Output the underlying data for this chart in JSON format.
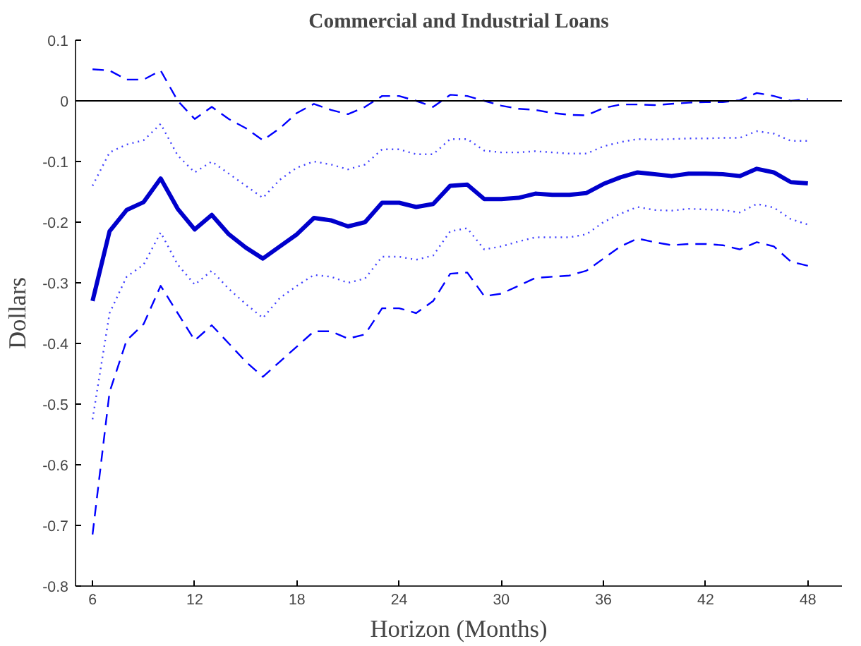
{
  "chart_data": {
    "type": "line",
    "title": "Commercial and Industrial Loans",
    "xlabel": "Horizon (Months)",
    "ylabel": "Dollars",
    "x": [
      6,
      7,
      8,
      9,
      10,
      11,
      12,
      13,
      14,
      15,
      16,
      17,
      18,
      19,
      20,
      21,
      22,
      23,
      24,
      25,
      26,
      27,
      28,
      29,
      30,
      31,
      32,
      33,
      34,
      35,
      36,
      37,
      38,
      39,
      40,
      41,
      42,
      43,
      44,
      45,
      46,
      47,
      48
    ],
    "xlim": [
      5,
      50
    ],
    "ylim": [
      -0.8,
      0.1
    ],
    "xticks": [
      6,
      12,
      18,
      24,
      30,
      36,
      42,
      48
    ],
    "yticks": [
      {
        "value": -0.8,
        "label": "-0.8"
      },
      {
        "value": -0.7,
        "label": "-0.7"
      },
      {
        "value": -0.6,
        "label": "-0.6"
      },
      {
        "value": -0.5,
        "label": "-0.5"
      },
      {
        "value": -0.4,
        "label": "-0.4"
      },
      {
        "value": -0.3,
        "label": "-0.3"
      },
      {
        "value": -0.2,
        "label": "-0.2"
      },
      {
        "value": -0.1,
        "label": "-0.1"
      },
      {
        "value": 0,
        "label": "0"
      },
      {
        "value": 0.1,
        "label": "0.1"
      }
    ],
    "grid": false,
    "ref_lines": [
      {
        "axis": "y",
        "value": 0,
        "color": "#000000"
      }
    ],
    "series": [
      {
        "color": "#0000ff",
        "line_style": "dashed",
        "values": [
          0.052,
          0.05,
          0.035,
          0.035,
          0.05,
          0.0,
          -0.03,
          -0.01,
          -0.03,
          -0.045,
          -0.065,
          -0.045,
          -0.02,
          -0.005,
          -0.015,
          -0.022,
          -0.01,
          0.008,
          0.008,
          0.0,
          -0.01,
          0.01,
          0.008,
          0.0,
          -0.008,
          -0.013,
          -0.015,
          -0.02,
          -0.023,
          -0.024,
          -0.012,
          -0.006,
          -0.006,
          -0.007,
          -0.005,
          -0.003,
          -0.002,
          -0.002,
          0.001,
          0.013,
          0.008,
          0.0,
          0.003
        ]
      },
      {
        "color": "#4040ff",
        "line_style": "dotted",
        "values": [
          -0.14,
          -0.085,
          -0.072,
          -0.065,
          -0.038,
          -0.09,
          -0.118,
          -0.1,
          -0.12,
          -0.14,
          -0.16,
          -0.13,
          -0.11,
          -0.1,
          -0.105,
          -0.113,
          -0.105,
          -0.08,
          -0.08,
          -0.088,
          -0.088,
          -0.063,
          -0.063,
          -0.082,
          -0.085,
          -0.085,
          -0.083,
          -0.085,
          -0.087,
          -0.087,
          -0.075,
          -0.068,
          -0.063,
          -0.064,
          -0.063,
          -0.062,
          -0.062,
          -0.061,
          -0.061,
          -0.05,
          -0.054,
          -0.066,
          -0.066
        ]
      },
      {
        "color": "#0000cc",
        "line_style": "solid",
        "values": [
          -0.33,
          -0.215,
          -0.18,
          -0.167,
          -0.128,
          -0.178,
          -0.212,
          -0.188,
          -0.22,
          -0.242,
          -0.26,
          -0.24,
          -0.22,
          -0.193,
          -0.197,
          -0.207,
          -0.2,
          -0.168,
          -0.168,
          -0.175,
          -0.17,
          -0.14,
          -0.138,
          -0.162,
          -0.162,
          -0.16,
          -0.153,
          -0.155,
          -0.155,
          -0.152,
          -0.137,
          -0.126,
          -0.118,
          -0.121,
          -0.124,
          -0.12,
          -0.12,
          -0.121,
          -0.124,
          -0.112,
          -0.118,
          -0.134,
          -0.136
        ]
      },
      {
        "color": "#4040ff",
        "line_style": "dotted",
        "values": [
          -0.525,
          -0.35,
          -0.29,
          -0.27,
          -0.217,
          -0.27,
          -0.303,
          -0.28,
          -0.31,
          -0.335,
          -0.358,
          -0.325,
          -0.305,
          -0.287,
          -0.29,
          -0.3,
          -0.293,
          -0.257,
          -0.257,
          -0.262,
          -0.255,
          -0.215,
          -0.21,
          -0.245,
          -0.24,
          -0.232,
          -0.225,
          -0.225,
          -0.225,
          -0.22,
          -0.2,
          -0.186,
          -0.175,
          -0.18,
          -0.181,
          -0.178,
          -0.179,
          -0.18,
          -0.184,
          -0.17,
          -0.176,
          -0.195,
          -0.204
        ]
      },
      {
        "color": "#0000ff",
        "line_style": "dashed",
        "values": [
          -0.715,
          -0.48,
          -0.395,
          -0.368,
          -0.305,
          -0.35,
          -0.395,
          -0.37,
          -0.4,
          -0.43,
          -0.455,
          -0.43,
          -0.405,
          -0.38,
          -0.38,
          -0.392,
          -0.385,
          -0.342,
          -0.342,
          -0.35,
          -0.33,
          -0.285,
          -0.283,
          -0.322,
          -0.318,
          -0.305,
          -0.292,
          -0.29,
          -0.288,
          -0.28,
          -0.26,
          -0.24,
          -0.227,
          -0.233,
          -0.238,
          -0.236,
          -0.236,
          -0.238,
          -0.245,
          -0.233,
          -0.24,
          -0.265,
          -0.272
        ]
      }
    ]
  }
}
